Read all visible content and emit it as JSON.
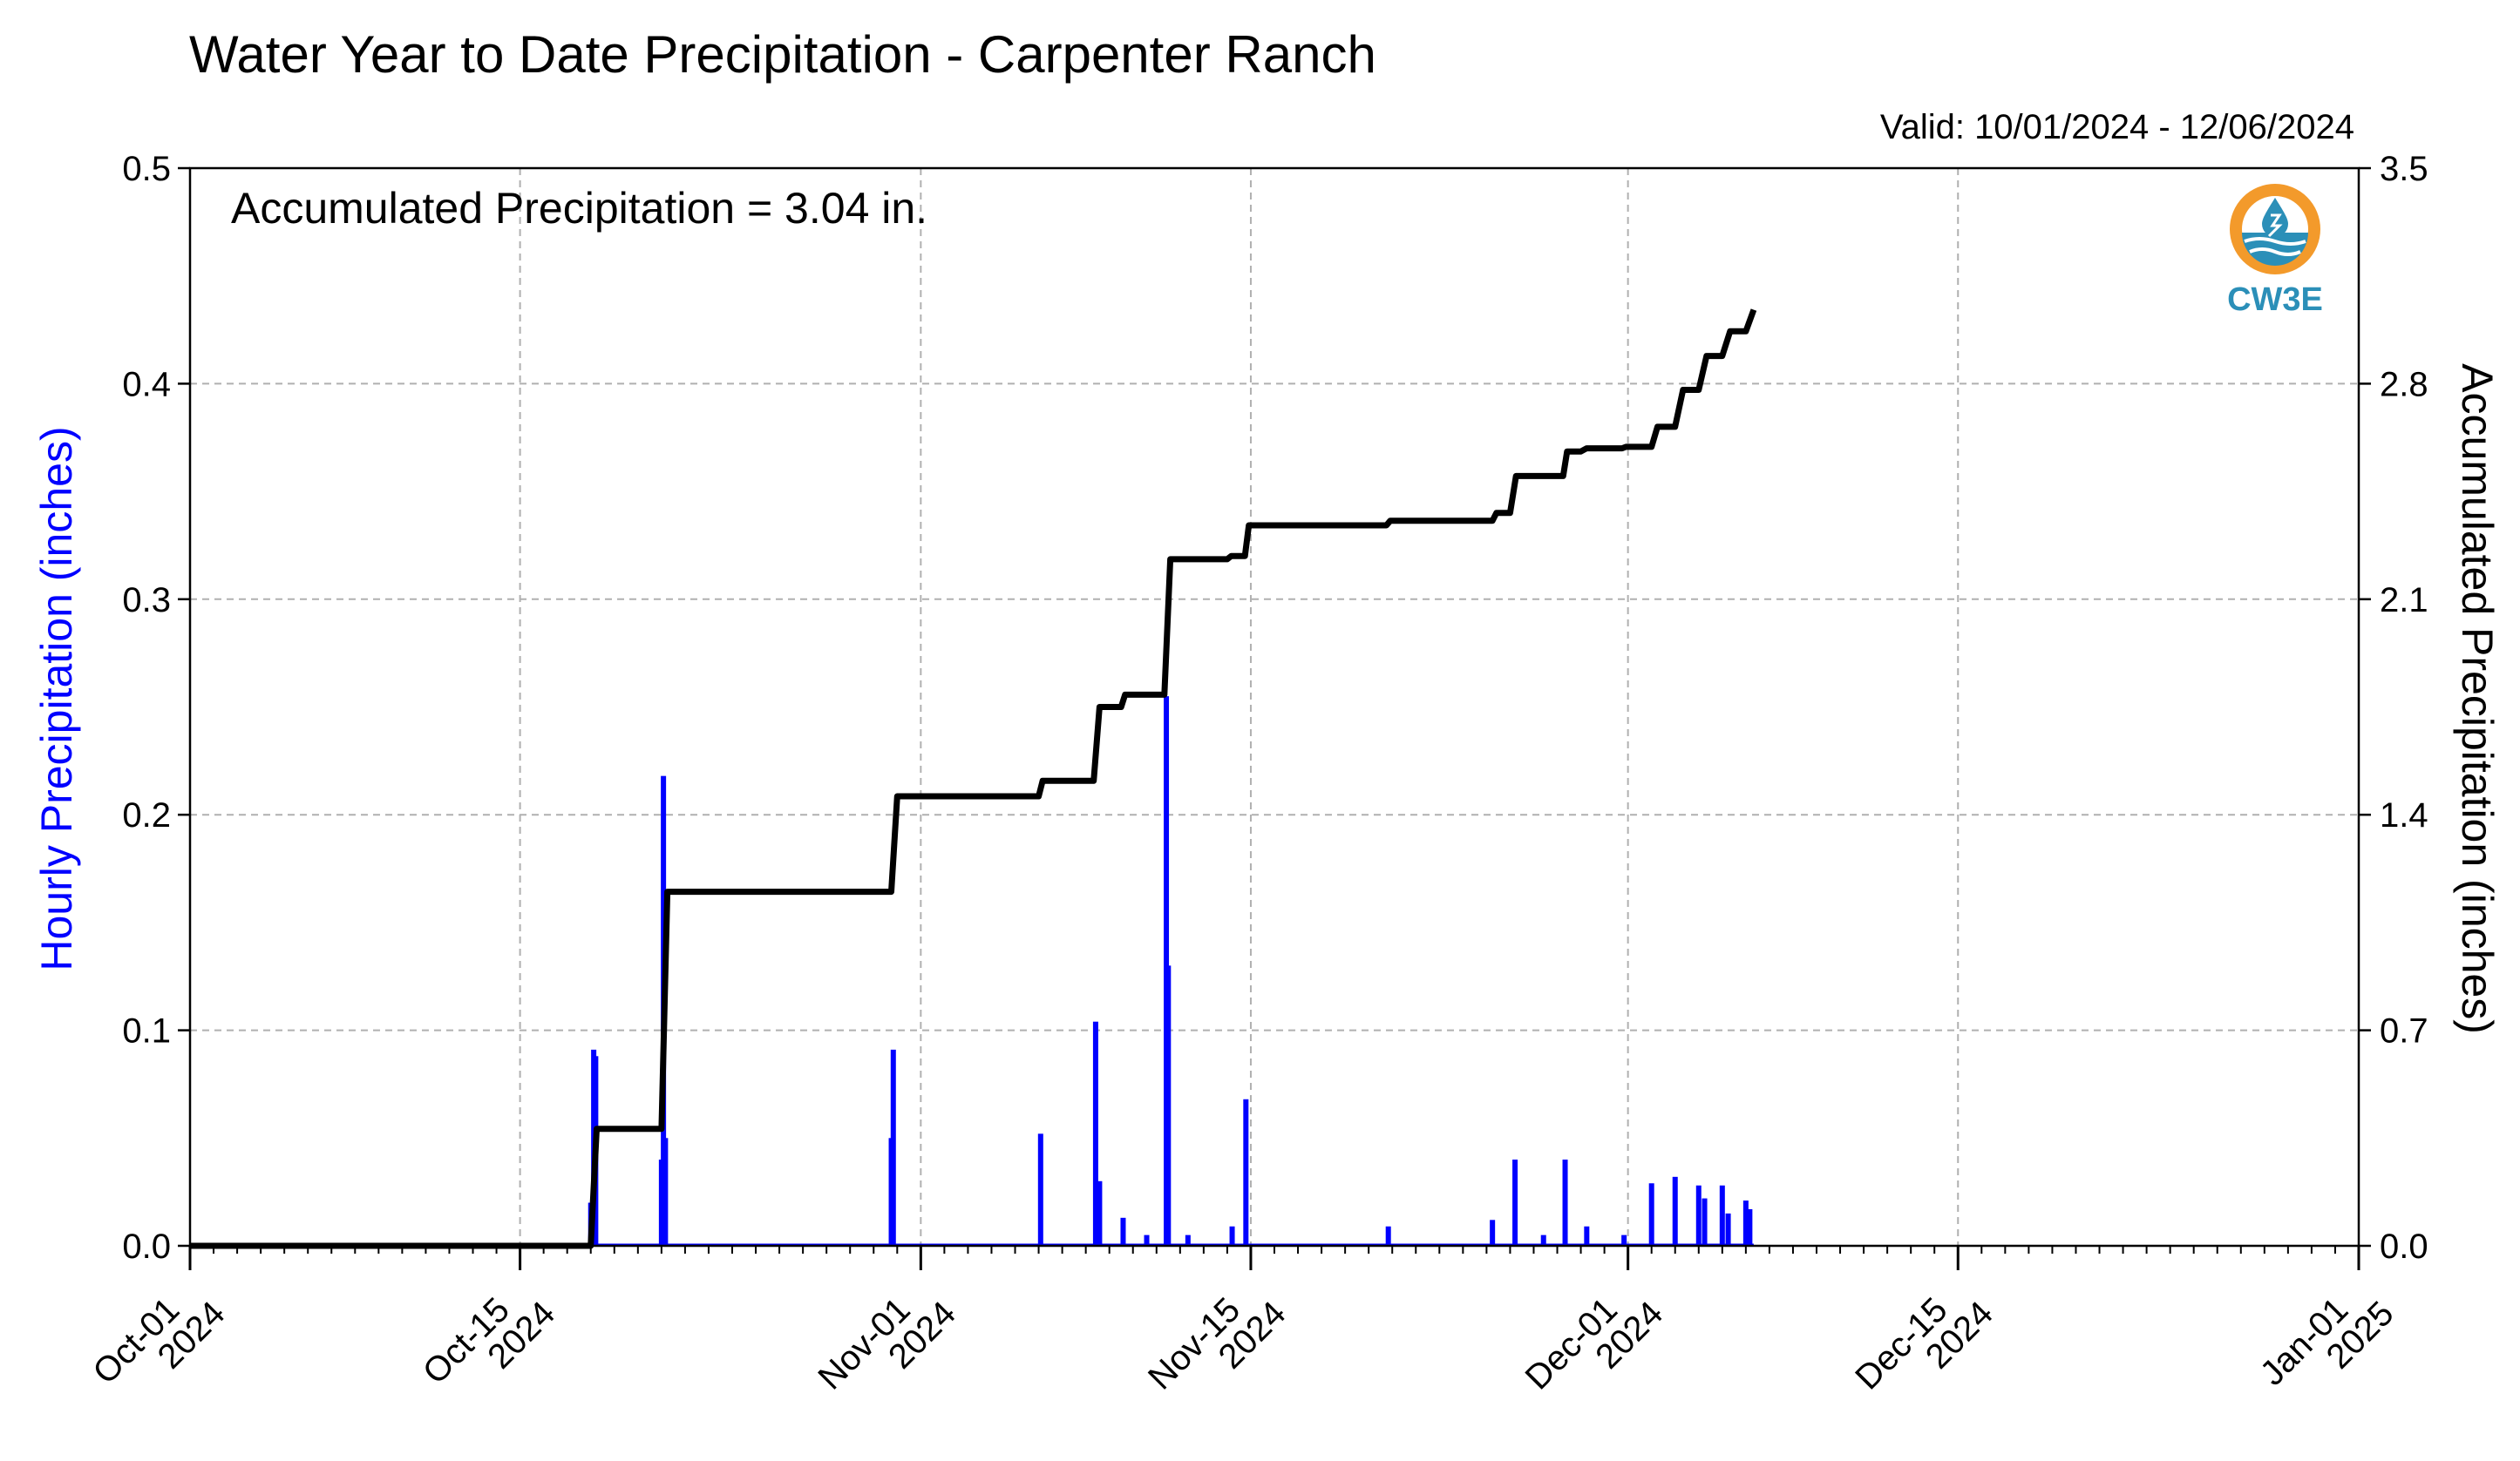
{
  "title": "Water Year to Date Precipitation - Carpenter Ranch",
  "valid": "Valid: 10/01/2024 - 12/06/2024",
  "annotation": "Accumulated Precipitation = 3.04 in.",
  "logo": {
    "text": "CW3E",
    "icon": "water-drop-logo-icon",
    "colors": {
      "ring": "#f39a2b",
      "water": "#2b8fb8"
    }
  },
  "colors": {
    "hourly": "#0000ff",
    "accumulated": "#000000",
    "grid": "#b0b0b0"
  },
  "chart_data": {
    "type": "bar+line",
    "title": "Water Year to Date Precipitation - Carpenter Ranch",
    "ylabel_left": "Hourly Precipitation (inches)",
    "ylabel_right": "Accumulated Precipitation (inches)",
    "ylim_left": [
      0,
      0.5
    ],
    "ylim_right": [
      0,
      3.5
    ],
    "yticks_left": [
      "0.0",
      "0.1",
      "0.2",
      "0.3",
      "0.4",
      "0.5"
    ],
    "yticks_right": [
      "0.0",
      "0.7",
      "1.4",
      "2.1",
      "2.8",
      "3.5"
    ],
    "xlim": [
      "2024-10-01",
      "2025-01-01"
    ],
    "xticks": [
      {
        "date": "2024-10-01",
        "label": [
          "Oct-01",
          "2024"
        ]
      },
      {
        "date": "2024-10-15",
        "label": [
          "Oct-15",
          "2024"
        ]
      },
      {
        "date": "2024-11-01",
        "label": [
          "Nov-01",
          "2024"
        ]
      },
      {
        "date": "2024-11-15",
        "label": [
          "Nov-15",
          "2024"
        ]
      },
      {
        "date": "2024-12-01",
        "label": [
          "Dec-01",
          "2024"
        ]
      },
      {
        "date": "2024-12-15",
        "label": [
          "Dec-15",
          "2024"
        ]
      },
      {
        "date": "2025-01-01",
        "label": [
          "Jan-01",
          "2025"
        ]
      }
    ],
    "grid": true,
    "series": [
      {
        "name": "Hourly Precipitation",
        "type": "bar",
        "points": [
          [
            "2024-10-18T00:00",
            0.02
          ],
          [
            "2024-10-18T03:00",
            0.091
          ],
          [
            "2024-10-18T05:00",
            0.088
          ],
          [
            "2024-10-21T00:00",
            0.04
          ],
          [
            "2024-10-21T02:00",
            0.218
          ],
          [
            "2024-10-21T04:00",
            0.05
          ],
          [
            "2024-10-30T18:00",
            0.05
          ],
          [
            "2024-10-30T20:00",
            0.091
          ],
          [
            "2024-11-06T02:00",
            0.052
          ],
          [
            "2024-11-08T10:00",
            0.104
          ],
          [
            "2024-11-08T14:00",
            0.03
          ],
          [
            "2024-11-09T14:00",
            0.013
          ],
          [
            "2024-11-10T14:00",
            0.005
          ],
          [
            "2024-11-11T10:00",
            0.255
          ],
          [
            "2024-11-11T12:00",
            0.13
          ],
          [
            "2024-11-12T08:00",
            0.005
          ],
          [
            "2024-11-14T05:00",
            0.009
          ],
          [
            "2024-11-14T19:00",
            0.068
          ],
          [
            "2024-11-20T20:00",
            0.009
          ],
          [
            "2024-11-25T06:00",
            0.012
          ],
          [
            "2024-11-26T05:00",
            0.04
          ],
          [
            "2024-11-27T10:00",
            0.005
          ],
          [
            "2024-11-28T08:00",
            0.04
          ],
          [
            "2024-11-29T06:00",
            0.009
          ],
          [
            "2024-11-30T20:00",
            0.005
          ],
          [
            "2024-12-02T00:00",
            0.029
          ],
          [
            "2024-12-03T00:00",
            0.032
          ],
          [
            "2024-12-04T00:00",
            0.028
          ],
          [
            "2024-12-04T06:00",
            0.022
          ],
          [
            "2024-12-05T00:00",
            0.028
          ],
          [
            "2024-12-05T06:00",
            0.015
          ],
          [
            "2024-12-06T00:00",
            0.021
          ],
          [
            "2024-12-06T04:00",
            0.017
          ]
        ]
      },
      {
        "name": "Accumulated Precipitation",
        "type": "step-line",
        "points": [
          [
            "2024-10-01T00:00",
            0.0
          ],
          [
            "2024-10-18T00:00",
            0.0
          ],
          [
            "2024-10-18T06:00",
            0.38
          ],
          [
            "2024-10-21T00:00",
            0.38
          ],
          [
            "2024-10-21T06:00",
            1.15
          ],
          [
            "2024-10-30T18:00",
            1.15
          ],
          [
            "2024-10-31T00:00",
            1.46
          ],
          [
            "2024-11-06T00:00",
            1.46
          ],
          [
            "2024-11-06T04:00",
            1.51
          ],
          [
            "2024-11-08T08:00",
            1.51
          ],
          [
            "2024-11-08T14:00",
            1.75
          ],
          [
            "2024-11-09T12:00",
            1.75
          ],
          [
            "2024-11-09T16:00",
            1.79
          ],
          [
            "2024-11-11T08:00",
            1.79
          ],
          [
            "2024-11-11T14:00",
            2.23
          ],
          [
            "2024-11-14T00:00",
            2.23
          ],
          [
            "2024-11-14T04:00",
            2.24
          ],
          [
            "2024-11-14T18:00",
            2.24
          ],
          [
            "2024-11-14T22:00",
            2.34
          ],
          [
            "2024-11-20T18:00",
            2.34
          ],
          [
            "2024-11-20T22:00",
            2.355
          ],
          [
            "2024-11-25T06:00",
            2.355
          ],
          [
            "2024-11-25T10:00",
            2.38
          ],
          [
            "2024-11-26T00:00",
            2.38
          ],
          [
            "2024-11-26T06:00",
            2.5
          ],
          [
            "2024-11-28T06:00",
            2.5
          ],
          [
            "2024-11-28T10:00",
            2.58
          ],
          [
            "2024-11-29T00:00",
            2.58
          ],
          [
            "2024-11-29T06:00",
            2.59
          ],
          [
            "2024-11-30T18:00",
            2.59
          ],
          [
            "2024-11-30T22:00",
            2.595
          ],
          [
            "2024-12-02T00:00",
            2.595
          ],
          [
            "2024-12-02T06:00",
            2.66
          ],
          [
            "2024-12-03T00:00",
            2.66
          ],
          [
            "2024-12-03T08:00",
            2.78
          ],
          [
            "2024-12-04T00:00",
            2.78
          ],
          [
            "2024-12-04T08:00",
            2.89
          ],
          [
            "2024-12-05T00:00",
            2.89
          ],
          [
            "2024-12-05T08:00",
            2.97
          ],
          [
            "2024-12-06T00:00",
            2.97
          ],
          [
            "2024-12-06T08:00",
            3.04
          ]
        ]
      }
    ]
  }
}
